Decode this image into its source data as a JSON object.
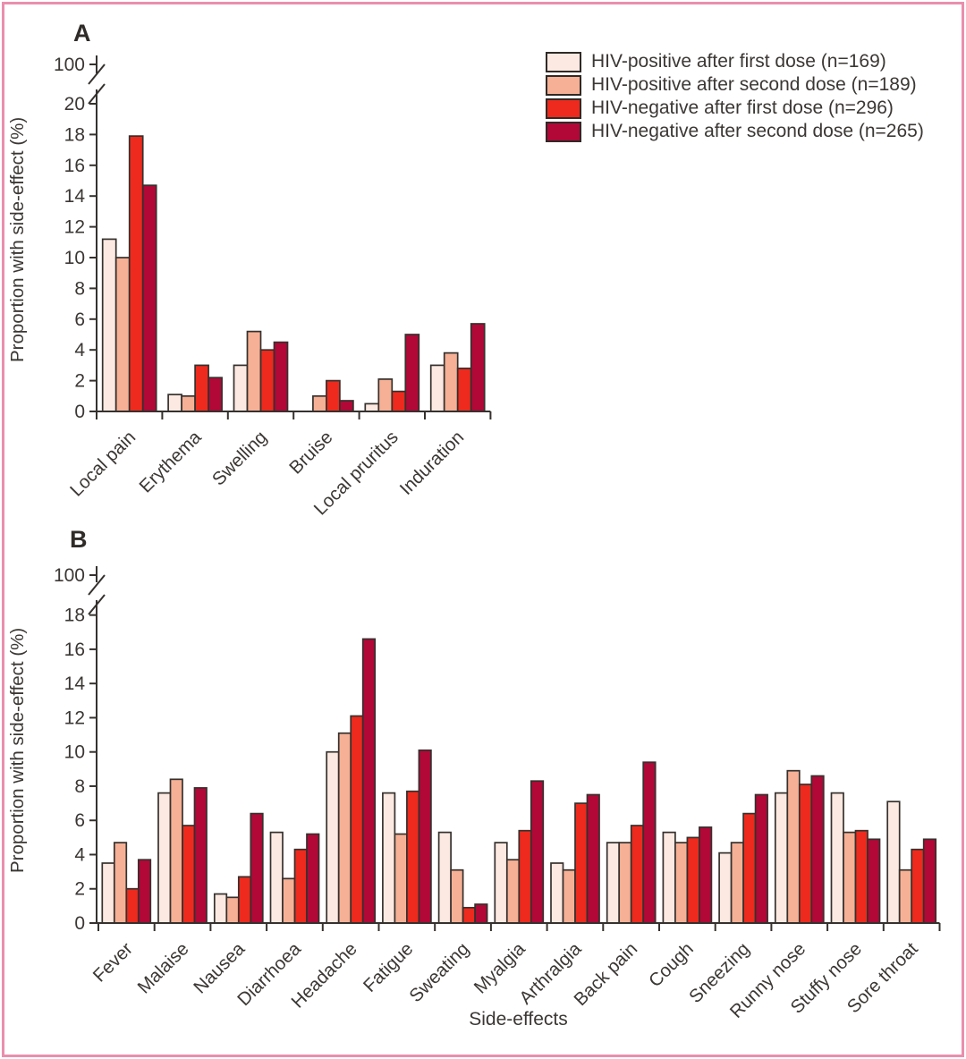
{
  "figure": {
    "frame_color": "#ea8fae",
    "x_axis_label": "Side-effects",
    "y_axis_label": "Proportion with side-effect (%)"
  },
  "legend": {
    "items": [
      {
        "label": "HIV-positive after first dose (n=169)",
        "color": "#fce9e2"
      },
      {
        "label": "HIV-positive after second dose (n=189)",
        "color": "#f6b095"
      },
      {
        "label": "HIV-negative after first dose (n=296)",
        "color": "#ed2a1d"
      },
      {
        "label": "HIV-negative after second dose (n=265)",
        "color": "#b10837"
      }
    ]
  },
  "chart_data": [
    {
      "type": "bar",
      "panel": "A",
      "ylabel": "Proportion with side-effect (%)",
      "xlabel": "",
      "ylim": [
        0,
        20
      ],
      "ytick_step": 2,
      "ybreak_label": "100",
      "grid": false,
      "legend_position": "top-right",
      "categories": [
        "Local pain",
        "Erythema",
        "Swelling",
        "Bruise",
        "Local pruritus",
        "Induration"
      ],
      "series": [
        {
          "name": "HIV-positive after first dose (n=169)",
          "color": "#fce9e2",
          "values": [
            11.2,
            1.1,
            3.0,
            0,
            0.5,
            3.0
          ]
        },
        {
          "name": "HIV-positive after second dose (n=189)",
          "color": "#f6b095",
          "values": [
            10.0,
            1.0,
            5.2,
            1.0,
            2.1,
            3.8
          ]
        },
        {
          "name": "HIV-negative after first dose (n=296)",
          "color": "#ed2a1d",
          "values": [
            17.9,
            3.0,
            4.0,
            2.0,
            1.3,
            2.8
          ]
        },
        {
          "name": "HIV-negative after second dose (n=265)",
          "color": "#b10837",
          "values": [
            14.7,
            2.2,
            4.5,
            0.7,
            5.0,
            5.7
          ]
        }
      ]
    },
    {
      "type": "bar",
      "panel": "B",
      "ylabel": "Proportion with side-effect (%)",
      "xlabel": "Side-effects",
      "ylim": [
        0,
        18
      ],
      "ytick_step": 2,
      "ybreak_label": "100",
      "grid": false,
      "categories": [
        "Fever",
        "Malaise",
        "Nausea",
        "Diarrhoea",
        "Headache",
        "Fatigue",
        "Sweating",
        "Myalgia",
        "Arthralgia",
        "Back pain",
        "Cough",
        "Sneezing",
        "Runny nose",
        "Stuffy nose",
        "Sore throat"
      ],
      "series": [
        {
          "name": "HIV-positive after first dose (n=169)",
          "color": "#fce9e2",
          "values": [
            3.5,
            7.6,
            1.7,
            5.3,
            10.0,
            7.6,
            5.3,
            4.7,
            3.5,
            4.7,
            5.3,
            4.1,
            7.6,
            7.6,
            7.1
          ]
        },
        {
          "name": "HIV-positive after second dose (n=189)",
          "color": "#f6b095",
          "values": [
            4.7,
            8.4,
            1.5,
            2.6,
            11.1,
            5.2,
            3.1,
            3.7,
            3.1,
            4.7,
            4.7,
            4.7,
            8.9,
            5.3,
            3.1
          ]
        },
        {
          "name": "HIV-negative after first dose (n=296)",
          "color": "#ed2a1d",
          "values": [
            2.0,
            5.7,
            2.7,
            4.3,
            12.1,
            7.7,
            0.9,
            5.4,
            7.0,
            5.7,
            5.0,
            6.4,
            8.1,
            5.4,
            4.3
          ]
        },
        {
          "name": "HIV-negative after second dose (n=265)",
          "color": "#b10837",
          "values": [
            3.7,
            7.9,
            6.4,
            5.2,
            16.6,
            10.1,
            1.1,
            8.3,
            7.5,
            9.4,
            5.6,
            7.5,
            8.6,
            4.9,
            4.9
          ]
        }
      ]
    }
  ]
}
